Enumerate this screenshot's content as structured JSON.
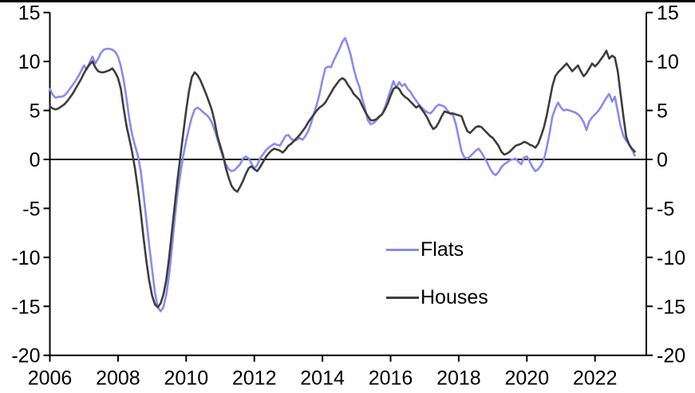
{
  "chart_data": {
    "type": "line",
    "title": "",
    "grid": false,
    "zero_line": true,
    "frequency": "monthly",
    "start": "2006-01",
    "end": "2023-03",
    "x_axis": {
      "tick_years": [
        2006,
        2008,
        2010,
        2012,
        2014,
        2016,
        2018,
        2020,
        2022
      ]
    },
    "y_axis": {
      "ticks": [
        15,
        10,
        5,
        0,
        -5,
        -10,
        -15,
        -20
      ],
      "tick_labels": [
        "15",
        "10",
        "5",
        "0",
        "-5",
        "-10",
        "-15",
        "-20"
      ],
      "range": [
        -20,
        15
      ],
      "sides": "both"
    },
    "legend": {
      "position": "center-right",
      "entries": [
        "Flats",
        "Houses"
      ]
    },
    "series": [
      {
        "name": "Flats",
        "color": "#8a8aee",
        "values": [
          7.2,
          6.6,
          6.3,
          6.4,
          6.4,
          6.5,
          6.8,
          7.2,
          7.6,
          8.0,
          8.5,
          9.0,
          9.6,
          9.2,
          9.9,
          10.5,
          9.8,
          10.3,
          10.9,
          11.2,
          11.3,
          11.3,
          11.2,
          11.0,
          10.5,
          9.5,
          8.1,
          6.2,
          4.1,
          2.5,
          1.4,
          0.4,
          -1.2,
          -3.6,
          -6.2,
          -8.8,
          -11.2,
          -13.6,
          -15.1,
          -15.5,
          -15.1,
          -13.8,
          -11.8,
          -9.0,
          -6.0,
          -3.4,
          -1.4,
          0.4,
          1.9,
          3.2,
          4.3,
          5.1,
          5.3,
          5.1,
          4.8,
          4.6,
          4.3,
          3.8,
          3.0,
          2.1,
          1.1,
          0.2,
          -0.5,
          -1.0,
          -1.2,
          -1.1,
          -0.8,
          -0.5,
          0.1,
          0.3,
          0.1,
          -0.4,
          -0.9,
          -0.6,
          0.1,
          0.5,
          0.9,
          1.2,
          1.4,
          1.6,
          1.5,
          1.4,
          1.9,
          2.4,
          2.5,
          2.1,
          1.9,
          2.0,
          2.2,
          2.0,
          2.4,
          2.9,
          3.7,
          4.7,
          5.6,
          6.7,
          8.1,
          9.3,
          9.5,
          9.4,
          10.1,
          10.7,
          11.3,
          12.0,
          12.4,
          11.6,
          10.6,
          9.3,
          8.2,
          7.4,
          6.2,
          5.2,
          4.0,
          3.6,
          3.7,
          4.0,
          4.3,
          4.6,
          5.3,
          6.2,
          7.1,
          8.0,
          7.3,
          7.9,
          7.5,
          7.7,
          7.2,
          6.9,
          6.4,
          6.0,
          5.6,
          5.3,
          5.0,
          4.8,
          4.7,
          5.0,
          5.4,
          5.6,
          5.5,
          5.4,
          5.0,
          4.7,
          4.5,
          3.6,
          2.2,
          0.8,
          0.2,
          0.1,
          0.3,
          0.6,
          0.9,
          1.1,
          0.7,
          0.2,
          -0.3,
          -0.9,
          -1.4,
          -1.6,
          -1.3,
          -0.8,
          -0.5,
          -0.3,
          -0.1,
          0.0,
          0.1,
          -0.2,
          -0.5,
          0.2,
          0.3,
          -0.2,
          -0.8,
          -1.2,
          -1.0,
          -0.6,
          0.0,
          1.2,
          2.7,
          4.4,
          5.2,
          5.8,
          5.3,
          5.0,
          5.1,
          5.0,
          4.9,
          4.8,
          4.6,
          4.3,
          3.8,
          3.0,
          3.9,
          4.3,
          4.6,
          4.9,
          5.3,
          5.8,
          6.3,
          6.7,
          5.9,
          6.4,
          4.9,
          3.4,
          2.4,
          1.9,
          1.6,
          1.0,
          0.4
        ]
      },
      {
        "name": "Houses",
        "color": "#3d3d3d",
        "values": [
          5.4,
          5.2,
          5.1,
          5.2,
          5.4,
          5.6,
          5.9,
          6.3,
          6.7,
          7.2,
          7.7,
          8.2,
          8.8,
          9.3,
          9.7,
          10.0,
          9.4,
          9.0,
          8.9,
          8.9,
          9.0,
          9.1,
          9.3,
          8.9,
          8.3,
          7.2,
          5.2,
          3.4,
          2.1,
          0.7,
          -1.0,
          -3.0,
          -5.4,
          -8.0,
          -10.4,
          -12.4,
          -13.9,
          -14.8,
          -15.1,
          -14.7,
          -13.8,
          -12.3,
          -10.0,
          -7.3,
          -4.6,
          -2.0,
          0.4,
          2.7,
          5.0,
          7.0,
          8.4,
          8.9,
          8.6,
          8.1,
          7.4,
          6.7,
          5.9,
          5.1,
          3.9,
          2.4,
          1.4,
          0.4,
          -0.9,
          -1.9,
          -2.7,
          -3.1,
          -3.3,
          -2.8,
          -2.2,
          -1.5,
          -0.9,
          -0.7,
          -1.0,
          -1.2,
          -0.8,
          -0.3,
          0.2,
          0.6,
          0.9,
          1.1,
          1.0,
          0.9,
          0.7,
          1.0,
          1.4,
          1.6,
          1.9,
          2.2,
          2.5,
          2.9,
          3.3,
          3.8,
          4.2,
          4.6,
          5.0,
          5.3,
          5.5,
          5.8,
          6.3,
          6.8,
          7.3,
          7.7,
          8.1,
          8.3,
          8.1,
          7.6,
          7.2,
          6.7,
          6.4,
          6.1,
          5.5,
          4.9,
          4.4,
          4.0,
          4.0,
          4.1,
          4.4,
          4.6,
          5.1,
          5.7,
          6.5,
          7.2,
          7.4,
          7.2,
          6.7,
          6.4,
          6.2,
          5.9,
          5.6,
          5.3,
          5.5,
          5.1,
          4.7,
          4.2,
          3.6,
          3.1,
          3.3,
          3.8,
          4.4,
          4.9,
          4.8,
          4.7,
          4.7,
          4.6,
          4.5,
          4.4,
          3.6,
          2.9,
          2.7,
          3.0,
          3.3,
          3.4,
          3.3,
          3.0,
          2.7,
          2.4,
          2.2,
          1.8,
          1.4,
          0.8,
          0.5,
          0.6,
          0.8,
          1.1,
          1.4,
          1.5,
          1.6,
          1.8,
          1.7,
          1.5,
          1.4,
          1.2,
          1.6,
          2.4,
          3.3,
          4.5,
          6.0,
          7.5,
          8.5,
          8.9,
          9.2,
          9.5,
          9.8,
          9.4,
          9.0,
          9.3,
          9.6,
          9.0,
          8.5,
          8.8,
          9.3,
          9.8,
          9.5,
          9.8,
          10.2,
          10.6,
          11.1,
          10.3,
          10.6,
          10.4,
          9.0,
          6.7,
          4.4,
          2.3,
          1.5,
          1.1,
          0.8
        ]
      }
    ]
  }
}
